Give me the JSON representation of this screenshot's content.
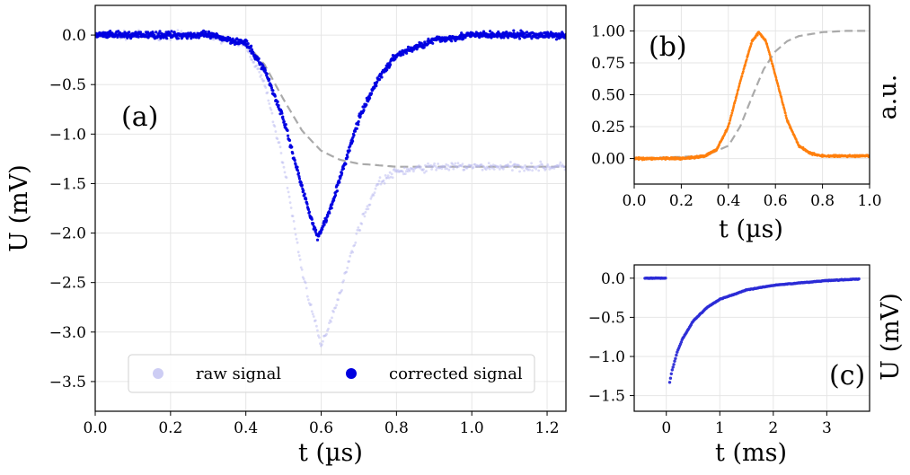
{
  "chart_data": [
    {
      "type": "scatter",
      "panel_label": "(a)",
      "xlabel": "t (µs)",
      "ylabel": "U (mV)",
      "xlim": [
        0.0,
        1.25
      ],
      "ylim": [
        -3.8,
        0.3
      ],
      "xticks": [
        "0.0",
        "0.2",
        "0.4",
        "0.6",
        "0.8",
        "1.0",
        "1.2"
      ],
      "yticks": [
        "0.0",
        "−0.5",
        "−1.0",
        "−1.5",
        "−2.0",
        "−2.5",
        "−3.0",
        "−3.5"
      ],
      "grid": true,
      "legend_position": "bottom",
      "series": [
        {
          "name": "raw signal",
          "color": "#b8b8f0",
          "x": [
            0.0,
            0.1,
            0.2,
            0.3,
            0.4,
            0.45,
            0.5,
            0.55,
            0.6,
            0.65,
            0.7,
            0.75,
            0.8,
            0.9,
            1.0,
            1.1,
            1.25
          ],
          "y": [
            0.0,
            0.0,
            0.0,
            0.0,
            -0.1,
            -0.5,
            -1.3,
            -2.4,
            -3.15,
            -2.6,
            -1.95,
            -1.5,
            -1.38,
            -1.33,
            -1.33,
            -1.33,
            -1.33
          ]
        },
        {
          "name": "corrected signal",
          "color": "#0000e0",
          "x": [
            0.0,
            0.1,
            0.2,
            0.3,
            0.4,
            0.45,
            0.5,
            0.55,
            0.59,
            0.62,
            0.65,
            0.7,
            0.75,
            0.8,
            0.9,
            1.0,
            1.1,
            1.25
          ],
          "y": [
            0.0,
            0.0,
            0.0,
            0.0,
            -0.08,
            -0.35,
            -0.85,
            -1.55,
            -2.05,
            -1.8,
            -1.45,
            -0.85,
            -0.45,
            -0.2,
            -0.05,
            0.0,
            0.0,
            0.0
          ]
        }
      ],
      "reference_curve": {
        "color": "#aaaaaa",
        "style": "dashed",
        "x": [
          0.4,
          0.45,
          0.5,
          0.55,
          0.6,
          0.65,
          0.7,
          0.8,
          0.9,
          1.0,
          1.25
        ],
        "y": [
          -0.08,
          -0.3,
          -0.65,
          -0.97,
          -1.17,
          -1.26,
          -1.3,
          -1.33,
          -1.33,
          -1.33,
          -1.33
        ]
      }
    },
    {
      "type": "scatter",
      "panel_label": "(b)",
      "xlabel": "t (µs)",
      "ylabel": "a.u.",
      "xlim": [
        0.0,
        1.0
      ],
      "ylim": [
        -0.2,
        1.2
      ],
      "xticks": [
        "0.0",
        "0.2",
        "0.4",
        "0.6",
        "0.8",
        "1.0"
      ],
      "yticks": [
        "0.00",
        "0.25",
        "0.50",
        "0.75",
        "1.00"
      ],
      "grid": true,
      "series": [
        {
          "color": "#ff7f0e",
          "x": [
            0.0,
            0.2,
            0.3,
            0.35,
            0.4,
            0.45,
            0.5,
            0.53,
            0.56,
            0.6,
            0.65,
            0.7,
            0.75,
            0.8,
            1.0
          ],
          "y": [
            0.0,
            0.0,
            0.02,
            0.07,
            0.25,
            0.6,
            0.92,
            0.99,
            0.92,
            0.65,
            0.3,
            0.1,
            0.04,
            0.02,
            0.02
          ]
        }
      ],
      "reference_curve": {
        "color": "#aaaaaa",
        "style": "dashed",
        "x": [
          0.0,
          0.3,
          0.4,
          0.45,
          0.5,
          0.55,
          0.6,
          0.65,
          0.7,
          0.8,
          0.9,
          1.0
        ],
        "y": [
          0.0,
          0.02,
          0.1,
          0.25,
          0.48,
          0.7,
          0.84,
          0.92,
          0.96,
          0.99,
          1.0,
          1.0
        ]
      }
    },
    {
      "type": "scatter",
      "panel_label": "(c)",
      "xlabel": "t (ms)",
      "ylabel": "U (mV)",
      "xlim": [
        -0.6,
        3.8
      ],
      "ylim": [
        -1.7,
        0.17
      ],
      "xticks": [
        "0",
        "1",
        "2",
        "3"
      ],
      "yticks": [
        "0.0",
        "−0.5",
        "−1.0",
        "−1.5"
      ],
      "grid": true,
      "series": [
        {
          "color": "#2b2bd6",
          "x": [
            -0.4,
            -0.3,
            -0.2,
            -0.1,
            0.0,
            0.05,
            0.1,
            0.2,
            0.3,
            0.5,
            0.75,
            1.0,
            1.5,
            2.0,
            2.5,
            3.0,
            3.6
          ],
          "y": [
            0.0,
            0.0,
            0.0,
            0.0,
            0.0,
            -1.38,
            -1.2,
            -0.95,
            -0.78,
            -0.55,
            -0.38,
            -0.27,
            -0.15,
            -0.09,
            -0.06,
            -0.03,
            -0.01
          ]
        }
      ]
    }
  ]
}
